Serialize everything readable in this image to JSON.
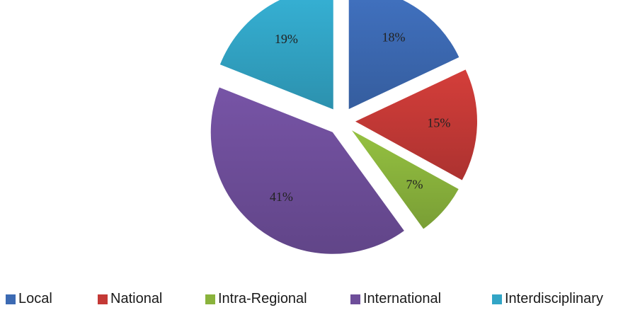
{
  "chart_data": {
    "type": "pie",
    "exploded": true,
    "title": "",
    "legend_position": "bottom",
    "slices": [
      {
        "name": "Local",
        "value": 18,
        "label": "18%",
        "color": "#3c6ab3"
      },
      {
        "name": "National",
        "value": 15,
        "label": "15%",
        "color": "#c43936"
      },
      {
        "name": "Intra-Regional",
        "value": 7,
        "label": "7%",
        "color": "#8ab33c"
      },
      {
        "name": "International",
        "value": 41,
        "label": "41%",
        "color": "#6e4e9a"
      },
      {
        "name": "Interdisciplinary",
        "value": 19,
        "label": "19%",
        "color": "#32a5c6"
      }
    ]
  }
}
